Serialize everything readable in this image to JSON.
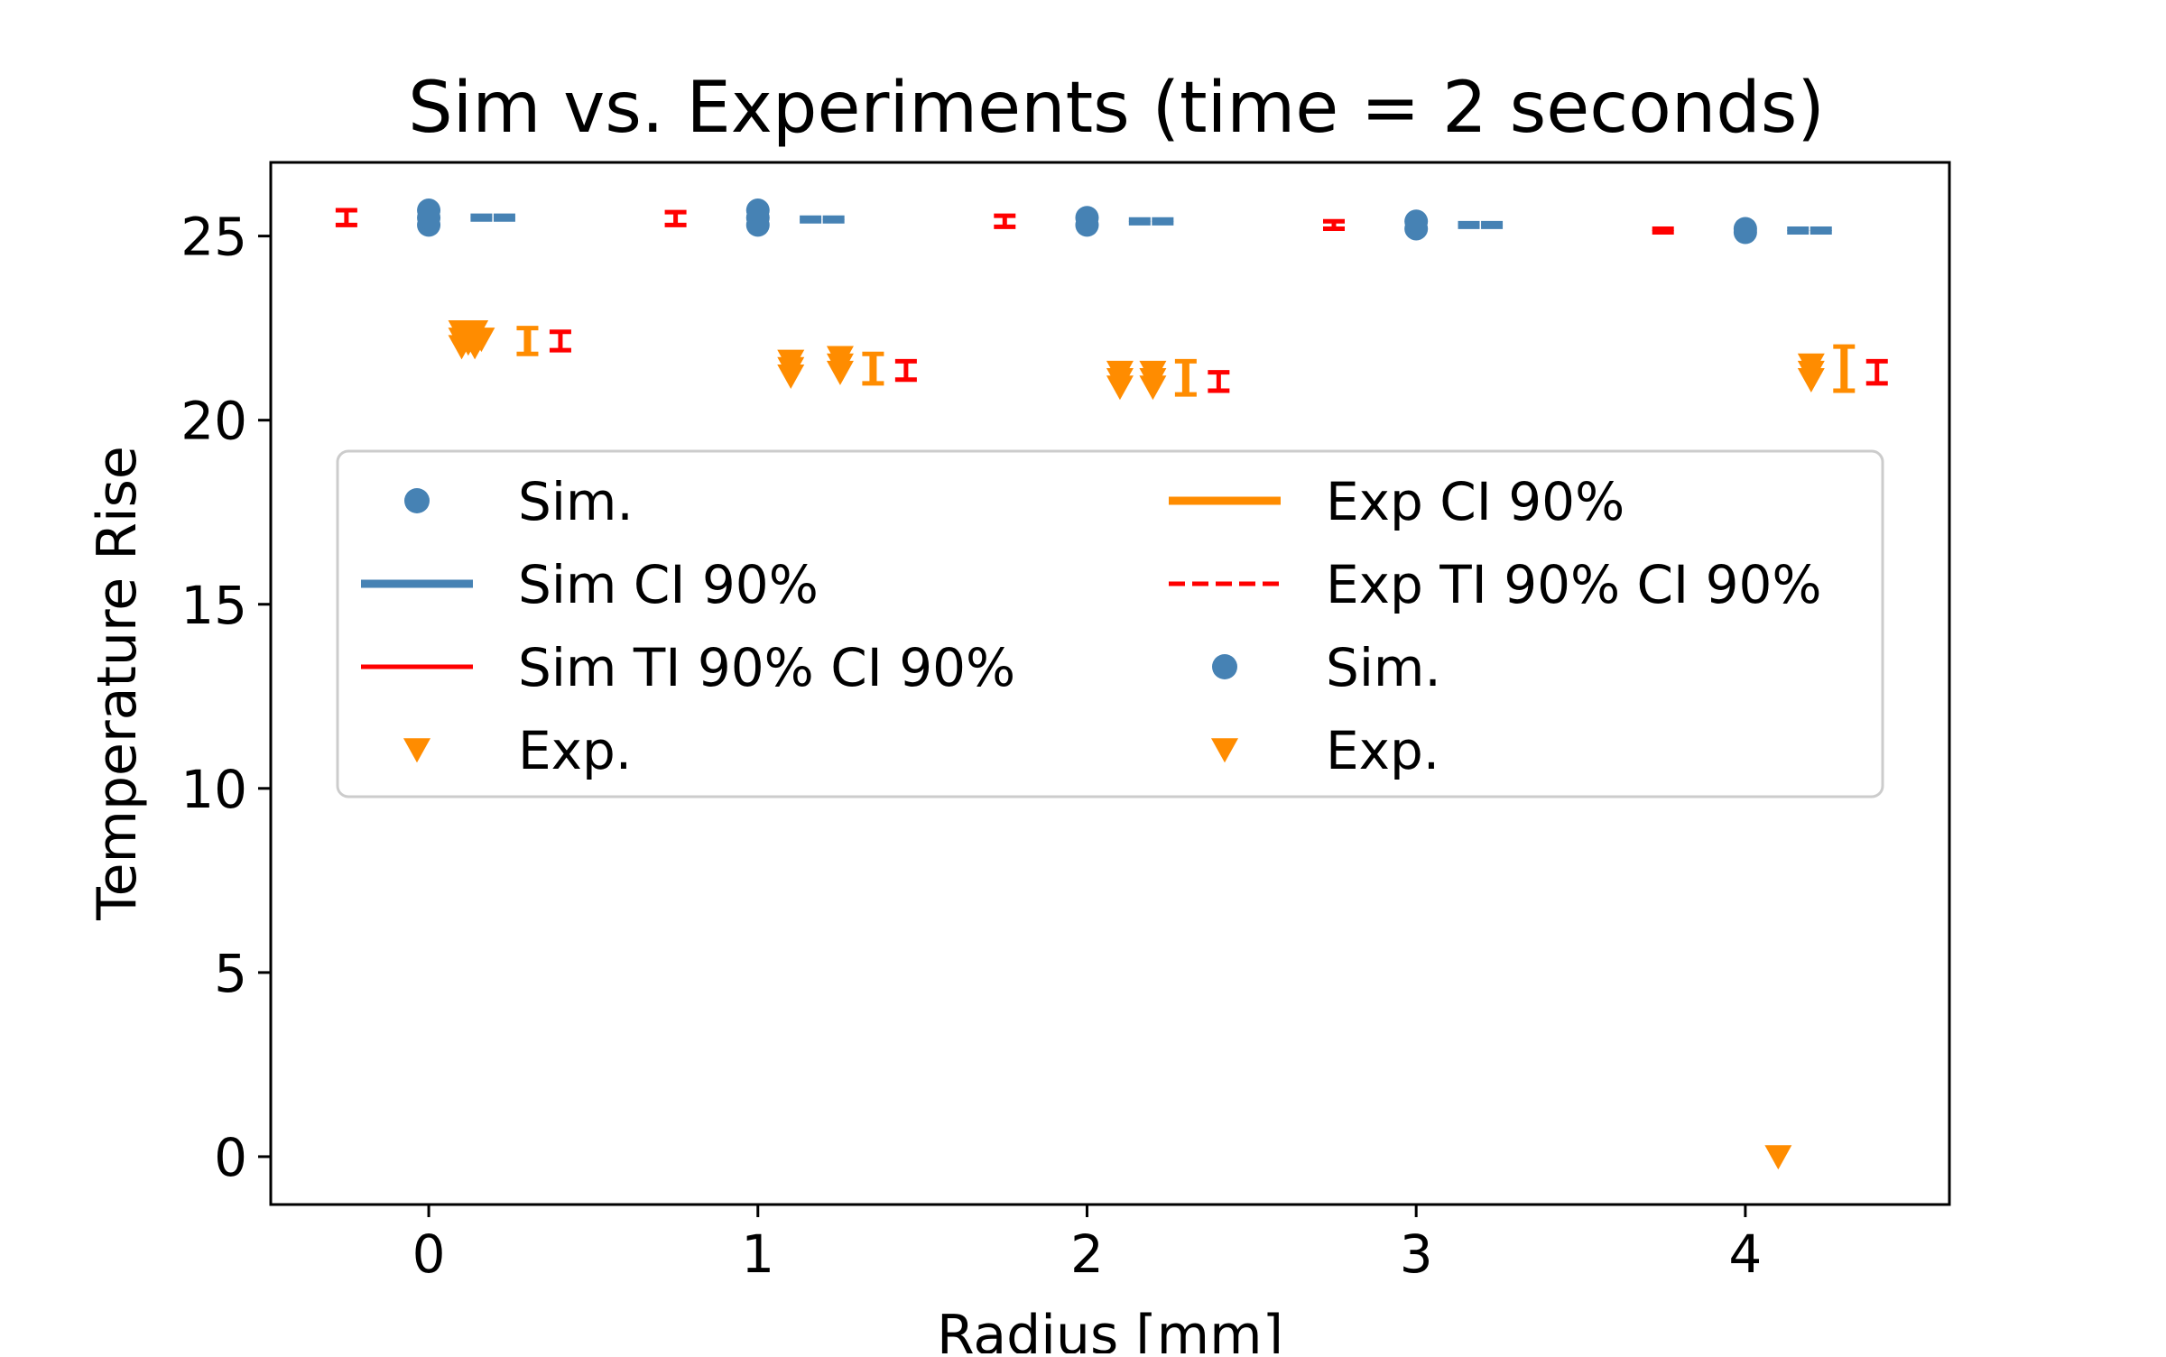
{
  "chart_data": {
    "type": "scatter",
    "title": "Sim vs. Experiments (time = 2 seconds)",
    "xlabel": "Radius [mm]",
    "ylabel": "Temperature Rise",
    "xlim": [
      -0.48,
      4.62
    ],
    "ylim": [
      -1.3,
      27.0
    ],
    "xticks": [
      0,
      1,
      2,
      3,
      4
    ],
    "yticks": [
      0,
      5,
      10,
      15,
      20,
      25
    ],
    "grid": false,
    "legend_placement": "center",
    "legend_columns": 2,
    "colors": {
      "sim": "#4682B4",
      "exp": "#FF8C00",
      "ti": "#FF0000"
    },
    "legend": [
      {
        "label": "Sim.",
        "marker": "circle",
        "color": "#4682B4"
      },
      {
        "label": "Sim CI 90%",
        "marker": "line-solid",
        "color": "#4682B4"
      },
      {
        "label": "Sim TI 90% CI 90%",
        "marker": "line-thin",
        "color": "#FF0000"
      },
      {
        "label": "Exp.",
        "marker": "triangle-down",
        "color": "#FF8C00"
      },
      {
        "label": "Exp CI 90%",
        "marker": "line-solid",
        "color": "#FF8C00"
      },
      {
        "label": "Exp TI 90% CI 90%",
        "marker": "line-dashed",
        "color": "#FF0000"
      },
      {
        "label": "Sim.",
        "marker": "circle",
        "color": "#4682B4"
      },
      {
        "label": "Exp.",
        "marker": "triangle-down",
        "color": "#FF8C00"
      }
    ],
    "series": [
      {
        "name": "Sim.",
        "marker": "circle",
        "color": "#4682B4",
        "points": [
          {
            "x": 0,
            "y": 25.3
          },
          {
            "x": 0,
            "y": 25.5
          },
          {
            "x": 0,
            "y": 25.7
          },
          {
            "x": 1,
            "y": 25.3
          },
          {
            "x": 1,
            "y": 25.5
          },
          {
            "x": 1,
            "y": 25.7
          },
          {
            "x": 2,
            "y": 25.3
          },
          {
            "x": 2,
            "y": 25.5
          },
          {
            "x": 3,
            "y": 25.2
          },
          {
            "x": 3,
            "y": 25.4
          },
          {
            "x": 4,
            "y": 25.1
          },
          {
            "x": 4,
            "y": 25.2
          }
        ]
      },
      {
        "name": "Exp.",
        "marker": "triangle-down",
        "color": "#FF8C00",
        "points": [
          {
            "x": 0.1,
            "y": 22.0
          },
          {
            "x": 0.1,
            "y": 22.2
          },
          {
            "x": 0.1,
            "y": 22.4
          },
          {
            "x": 0.12,
            "y": 22.1
          },
          {
            "x": 0.14,
            "y": 22.0
          },
          {
            "x": 0.14,
            "y": 22.4
          },
          {
            "x": 0.16,
            "y": 22.2
          },
          {
            "x": 1.1,
            "y": 21.2
          },
          {
            "x": 1.1,
            "y": 21.4
          },
          {
            "x": 1.1,
            "y": 21.6
          },
          {
            "x": 1.25,
            "y": 21.3
          },
          {
            "x": 1.25,
            "y": 21.5
          },
          {
            "x": 1.25,
            "y": 21.7
          },
          {
            "x": 2.1,
            "y": 20.9
          },
          {
            "x": 2.1,
            "y": 21.1
          },
          {
            "x": 2.1,
            "y": 21.3
          },
          {
            "x": 2.2,
            "y": 20.9
          },
          {
            "x": 2.2,
            "y": 21.1
          },
          {
            "x": 2.2,
            "y": 21.3
          },
          {
            "x": 4.1,
            "y": 0.0
          },
          {
            "x": 4.2,
            "y": 21.1
          },
          {
            "x": 4.2,
            "y": 21.3
          },
          {
            "x": 4.2,
            "y": 21.5
          }
        ]
      },
      {
        "name": "Sim CI 90%",
        "type": "interval",
        "color": "#4682B4",
        "intervals": [
          {
            "x": 0.23,
            "low": 25.45,
            "high": 25.55
          },
          {
            "x": 0.16,
            "low": 25.45,
            "high": 25.55
          },
          {
            "x": 1.23,
            "low": 25.4,
            "high": 25.5
          },
          {
            "x": 1.16,
            "low": 25.4,
            "high": 25.5
          },
          {
            "x": 2.23,
            "low": 25.35,
            "high": 25.45
          },
          {
            "x": 2.16,
            "low": 25.35,
            "high": 25.45
          },
          {
            "x": 3.23,
            "low": 25.25,
            "high": 25.35
          },
          {
            "x": 3.16,
            "low": 25.25,
            "high": 25.35
          },
          {
            "x": 4.23,
            "low": 25.1,
            "high": 25.2
          },
          {
            "x": 4.16,
            "low": 25.1,
            "high": 25.2
          }
        ]
      },
      {
        "name": "Sim TI 90% CI 90%",
        "type": "interval",
        "color": "#FF0000",
        "intervals": [
          {
            "x": -0.25,
            "low": 25.3,
            "high": 25.7
          },
          {
            "x": 0.75,
            "low": 25.3,
            "high": 25.65
          },
          {
            "x": 1.75,
            "low": 25.25,
            "high": 25.55
          },
          {
            "x": 2.75,
            "low": 25.2,
            "high": 25.4
          },
          {
            "x": 3.75,
            "low": 25.1,
            "high": 25.2
          }
        ]
      },
      {
        "name": "Exp CI 90%",
        "type": "interval",
        "color": "#FF8C00",
        "intervals": [
          {
            "x": 0.3,
            "low": 21.8,
            "high": 22.5
          },
          {
            "x": 1.35,
            "low": 21.0,
            "high": 21.8
          },
          {
            "x": 2.3,
            "low": 20.7,
            "high": 21.6
          },
          {
            "x": 4.3,
            "low": 20.8,
            "high": 22.0
          }
        ]
      },
      {
        "name": "Exp TI 90% CI 90%",
        "type": "interval",
        "color": "#FF0000",
        "intervals": [
          {
            "x": 0.4,
            "low": 21.9,
            "high": 22.4
          },
          {
            "x": 1.45,
            "low": 21.1,
            "high": 21.6
          },
          {
            "x": 2.4,
            "low": 20.8,
            "high": 21.3
          },
          {
            "x": 4.4,
            "low": 21.0,
            "high": 21.6
          }
        ]
      }
    ]
  }
}
